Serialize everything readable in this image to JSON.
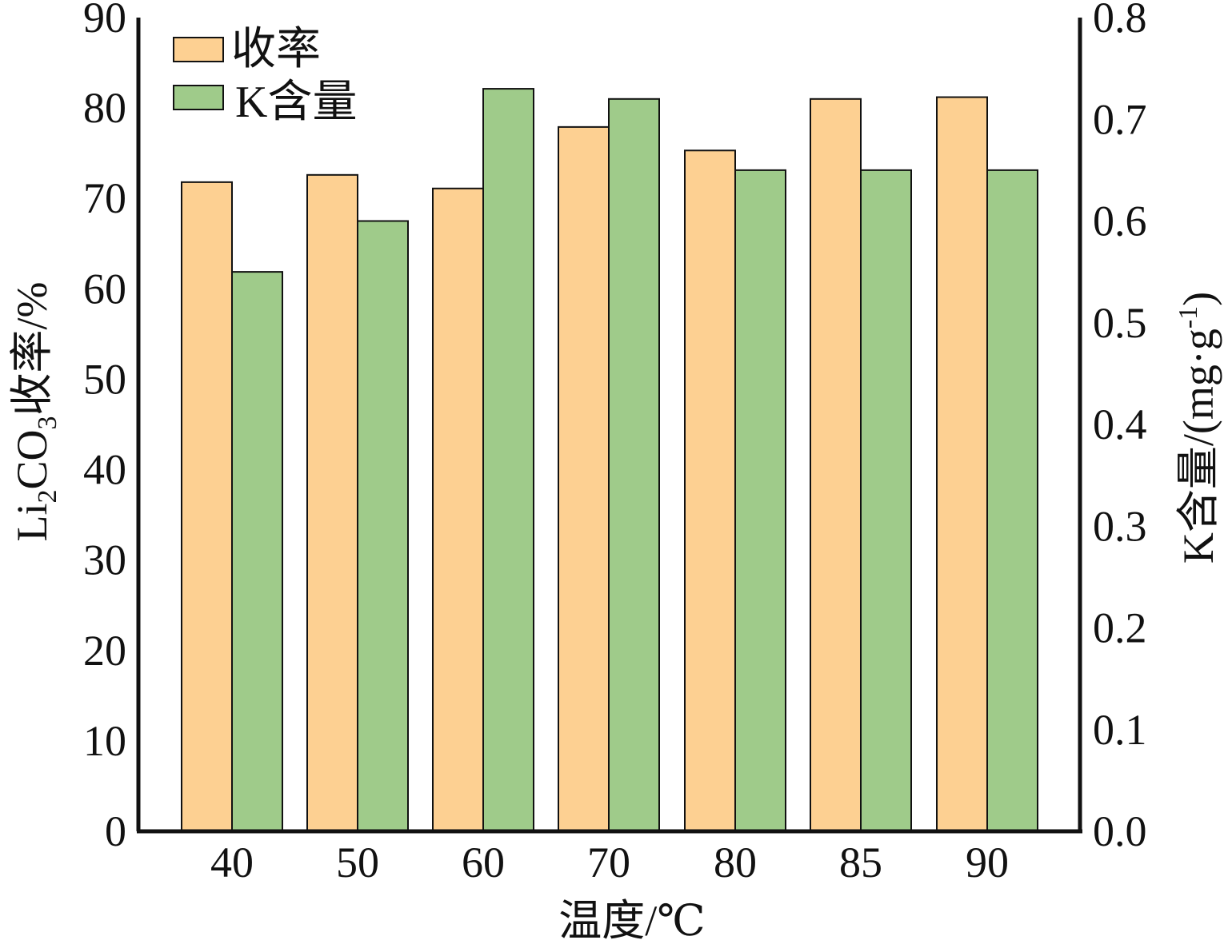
{
  "chart_data": {
    "type": "bar",
    "categories": [
      "40",
      "50",
      "60",
      "70",
      "80",
      "85",
      "90"
    ],
    "series": [
      {
        "name": "收率",
        "axis": "left",
        "color": "#FDD092",
        "values": [
          71.8,
          72.6,
          71.1,
          77.9,
          75.3,
          81.0,
          81.2
        ]
      },
      {
        "name": "K含量",
        "axis": "right",
        "color": "#9FCB8A",
        "values": [
          0.55,
          0.6,
          0.73,
          0.72,
          0.65,
          0.65,
          0.65
        ]
      }
    ],
    "xlabel": "温度/℃",
    "ylabel_left": {
      "text": "Li",
      "sub": "2",
      "text2": "CO",
      "sub2": "3",
      "text3": "收率/%"
    },
    "ylabel_right": {
      "text": "K含量/(mg·g",
      "sup": "-1",
      "text2": ")"
    },
    "ylim_left": [
      0,
      90
    ],
    "yticks_left": [
      "0",
      "10",
      "20",
      "30",
      "40",
      "50",
      "60",
      "70",
      "80",
      "90"
    ],
    "ylim_right": [
      0,
      0.8
    ],
    "yticks_right": [
      "0.0",
      "0.1",
      "0.2",
      "0.3",
      "0.4",
      "0.5",
      "0.6",
      "0.7",
      "0.8"
    ],
    "grid": false,
    "legend_position": "top-left"
  }
}
